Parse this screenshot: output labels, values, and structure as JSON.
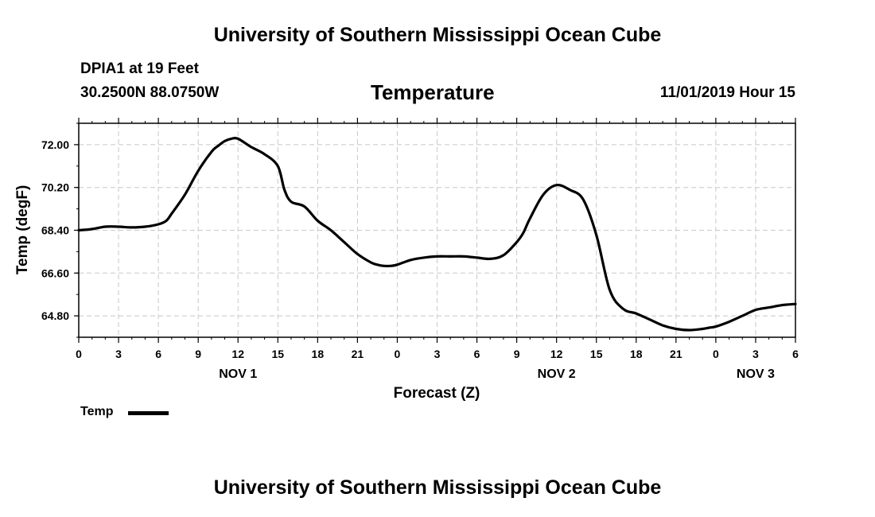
{
  "header": {
    "title": "University of Southern Mississippi Ocean Cube",
    "station": "DPIA1 at 19 Feet",
    "coords": "30.2500N 88.0750W",
    "datetime": "11/01/2019 Hour 15"
  },
  "footer": {
    "title": "University of Southern Mississippi Ocean Cube"
  },
  "chart_data": {
    "type": "line",
    "title": "Temperature",
    "xlabel": "Forecast (Z)",
    "ylabel": "Temp (degF)",
    "xlim": [
      0,
      54
    ],
    "ylim": [
      63.9,
      72.9
    ],
    "yticks": [
      72.0,
      70.2,
      68.4,
      66.6,
      64.8
    ],
    "ytick_labels": [
      "72.00",
      "70.20",
      "68.40",
      "66.60",
      "64.80"
    ],
    "xtick_labels": [
      "0",
      "3",
      "6",
      "9",
      "12",
      "15",
      "18",
      "21",
      "0",
      "3",
      "6",
      "9",
      "12",
      "15",
      "18",
      "21",
      "0",
      "3",
      "6"
    ],
    "day_labels": [
      {
        "label": "NOV 1",
        "hour": 12
      },
      {
        "label": "NOV 2",
        "hour": 36
      },
      {
        "label": "NOV 3",
        "hour": 51
      }
    ],
    "grid": true,
    "legend": [
      {
        "name": "Temp",
        "color": "#000000"
      }
    ],
    "series": [
      {
        "name": "Temp",
        "color": "#000000",
        "x": [
          0,
          1,
          2,
          3,
          4,
          5,
          6,
          6.6,
          7,
          8,
          9,
          10,
          10.5,
          11,
          11.5,
          12,
          13,
          14,
          15,
          15.5,
          16,
          17,
          18,
          19,
          20,
          21,
          22,
          22.5,
          23,
          23.5,
          24,
          25,
          26,
          27,
          28,
          29,
          30,
          31,
          32,
          33,
          33.5,
          34,
          35,
          36,
          37,
          38,
          39,
          40,
          41,
          42,
          43,
          44,
          45,
          46,
          47,
          47.5,
          48,
          49,
          50,
          51,
          52,
          53,
          54
        ],
        "y": [
          68.4,
          68.45,
          68.55,
          68.55,
          68.52,
          68.55,
          68.65,
          68.8,
          69.1,
          69.9,
          70.9,
          71.7,
          71.95,
          72.15,
          72.25,
          72.25,
          71.9,
          71.6,
          71.1,
          70.1,
          69.6,
          69.4,
          68.8,
          68.4,
          67.9,
          67.4,
          67.05,
          66.95,
          66.9,
          66.9,
          66.95,
          67.15,
          67.25,
          67.3,
          67.3,
          67.3,
          67.25,
          67.2,
          67.35,
          67.9,
          68.3,
          68.9,
          69.9,
          70.3,
          70.1,
          69.7,
          68.2,
          65.9,
          65.1,
          64.9,
          64.65,
          64.4,
          64.25,
          64.2,
          64.25,
          64.3,
          64.35,
          64.55,
          64.8,
          65.05,
          65.15,
          65.25,
          65.3
        ]
      }
    ]
  }
}
